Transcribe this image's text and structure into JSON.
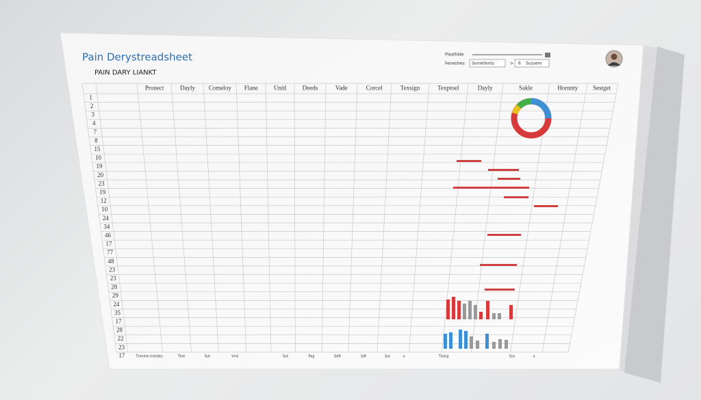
{
  "header": {
    "title": "Pain Derystreadsheet",
    "subtitle": "PAIN DARY LIANKT"
  },
  "controls": {
    "label_1": "Plasthlde",
    "label_2": "Feneshes:",
    "field_1": "Sorretlents",
    "arrow": ">",
    "field_2": "6",
    "field_3": "Sussem"
  },
  "table": {
    "columns": [
      "Pronect",
      "Dayly",
      "Comeloy",
      "Flane",
      "Unitl",
      "Deeds",
      "Vade",
      "Corcel",
      "Texsign",
      "Texptoel",
      "Dayly",
      "Sakle",
      "Hornnty",
      "Sestget"
    ],
    "row_numbers": [
      "1",
      "2",
      "3",
      "4",
      "7",
      "8",
      "15",
      "10",
      "19",
      "20",
      "23",
      "19",
      "12",
      "10",
      "24",
      "34",
      "46",
      "17",
      "77",
      "48",
      "23",
      "23",
      "28",
      "29",
      "24",
      "35",
      "17",
      "28",
      "22",
      "23"
    ]
  },
  "footer": {
    "row_number": "17",
    "labels": [
      "Tnmme Inetdes",
      "Tine",
      "Sut",
      "Vnd",
      "Sut",
      "Pag",
      "Sdft",
      "Sdf",
      "Sut",
      "x",
      "Tlsing",
      "Sss",
      "x"
    ]
  }
}
